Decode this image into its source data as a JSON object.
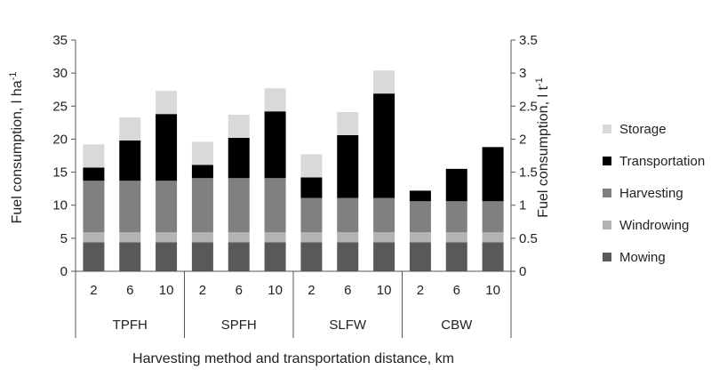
{
  "chart_data": {
    "type": "bar",
    "stacked": true,
    "title": "",
    "xlabel": "Harvesting method and transportation distance, km",
    "ylabel_left": {
      "base": "Fuel consumption, l ha",
      "sup": "-1"
    },
    "ylabel_right": {
      "base": "Fuel consumption, l t",
      "sup": "-1"
    },
    "ylim_left": [
      0,
      35
    ],
    "ylim_right": [
      0,
      3.5
    ],
    "yticks_left": [
      "0",
      "5",
      "10",
      "15",
      "20",
      "25",
      "30",
      "35"
    ],
    "yticks_right": [
      "0",
      "0.5",
      "1",
      "1.5",
      "2",
      "2.5",
      "3",
      "3.5"
    ],
    "groups": [
      {
        "name": "TPFH",
        "categories": [
          "2",
          "6",
          "10"
        ]
      },
      {
        "name": "SPFH",
        "categories": [
          "2",
          "6",
          "10"
        ]
      },
      {
        "name": "SLFW",
        "categories": [
          "2",
          "6",
          "10"
        ]
      },
      {
        "name": "CBW",
        "categories": [
          "2",
          "6",
          "10"
        ]
      }
    ],
    "series": [
      {
        "name": "Mowing",
        "color": "#595959",
        "values": [
          4.4,
          4.4,
          4.4,
          4.4,
          4.4,
          4.4,
          4.4,
          4.4,
          4.4,
          4.4,
          4.4,
          4.4
        ]
      },
      {
        "name": "Windrowing",
        "color": "#b3b3b3",
        "values": [
          1.5,
          1.5,
          1.5,
          1.5,
          1.5,
          1.5,
          1.5,
          1.5,
          1.5,
          1.5,
          1.5,
          1.5
        ]
      },
      {
        "name": "Harvesting",
        "color": "#808080",
        "values": [
          7.8,
          7.8,
          7.8,
          8.2,
          8.2,
          8.2,
          5.2,
          5.2,
          5.2,
          4.7,
          4.7,
          4.7
        ]
      },
      {
        "name": "Transportation",
        "color": "#000000",
        "values": [
          2.0,
          6.1,
          10.1,
          2.0,
          6.1,
          10.1,
          3.1,
          9.5,
          15.8,
          1.6,
          4.9,
          8.2
        ]
      },
      {
        "name": "Storage",
        "color": "#d9d9d9",
        "values": [
          3.5,
          3.5,
          3.5,
          3.5,
          3.5,
          3.5,
          3.5,
          3.5,
          3.5,
          0,
          0,
          0
        ]
      }
    ],
    "legend_position": "right",
    "grid": false
  }
}
